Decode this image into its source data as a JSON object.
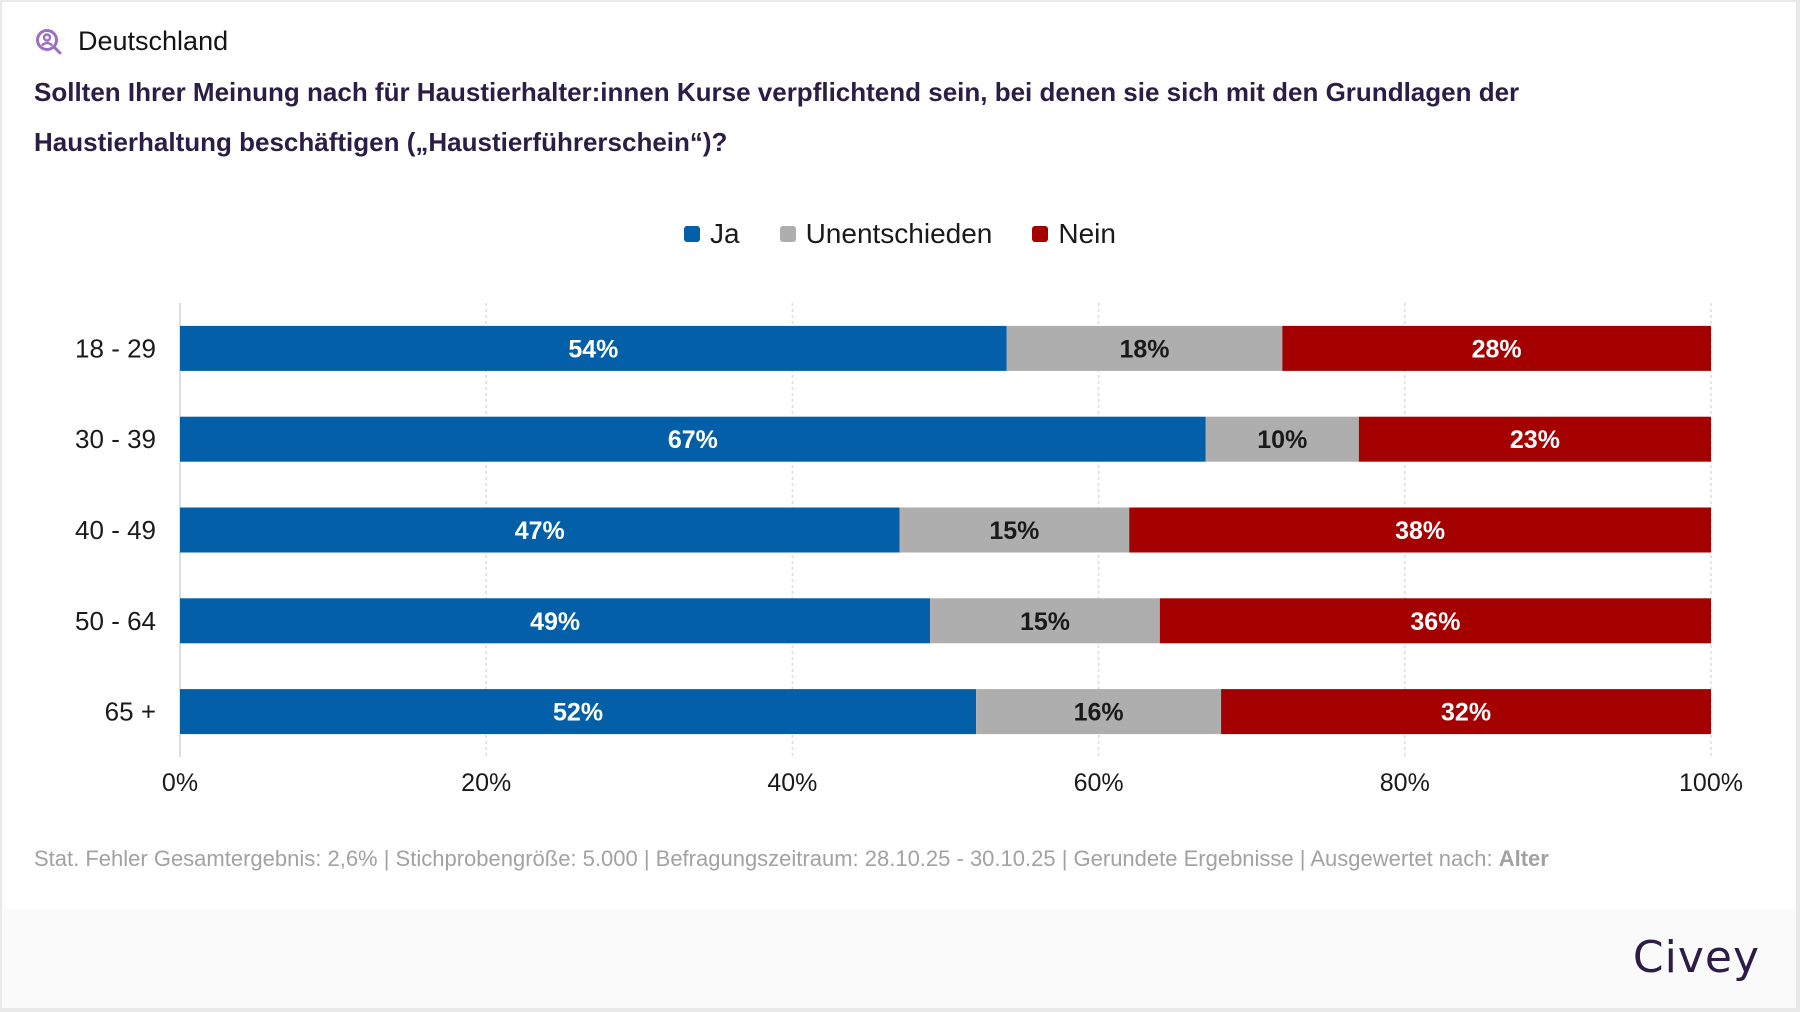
{
  "header": {
    "region_icon": "person-search-icon",
    "region": "Deutschland",
    "question": "Sollten Ihrer Meinung nach für Haustierhalter:innen Kurse verpflichtend sein, bei denen sie sich mit den Grundlagen der Haustierhaltung beschäftigen („Haustierführerschein“)?"
  },
  "colors": {
    "ja": "#0360a8",
    "unentschieden": "#aeaeae",
    "nein": "#a50000",
    "question": "#2b1d45",
    "icon": "#9b70c2"
  },
  "chart_data": {
    "type": "bar",
    "orientation": "horizontal",
    "stacked": true,
    "title": "Sollten Ihrer Meinung nach für Haustierhalter:innen Kurse verpflichtend sein, bei denen sie sich mit den Grundlagen der Haustierhaltung beschäftigen („Haustierführerschein“)?",
    "categories": [
      "18 - 29",
      "30 - 39",
      "40 - 49",
      "50 - 64",
      "65 +"
    ],
    "series": [
      {
        "name": "Ja",
        "color": "#0360a8",
        "label_color": "#ffffff",
        "values": [
          54,
          67,
          47,
          49,
          52
        ]
      },
      {
        "name": "Unentschieden",
        "color": "#aeaeae",
        "label_color": "#1a1a1a",
        "values": [
          18,
          10,
          15,
          15,
          16
        ]
      },
      {
        "name": "Nein",
        "color": "#a50000",
        "label_color": "#ffffff",
        "values": [
          28,
          23,
          38,
          36,
          32
        ]
      }
    ],
    "xlim": [
      0,
      100
    ],
    "xticks": [
      0,
      20,
      40,
      60,
      80,
      100
    ],
    "xtick_labels": [
      "0%",
      "20%",
      "40%",
      "60%",
      "80%",
      "100%"
    ],
    "value_suffix": "%",
    "xlabel": "",
    "ylabel": "",
    "grid": "vertical dashed",
    "legend_position": "top-center"
  },
  "legend": [
    {
      "label": "Ja"
    },
    {
      "label": "Unentschieden"
    },
    {
      "label": "Nein"
    }
  ],
  "footnote": {
    "text": "Stat. Fehler Gesamtergebnis: 2,6% | Stichprobengröße: 5.000 | Befragungszeitraum: 28.10.25 - 30.10.25 | Gerundete Ergebnisse | Ausgewertet nach: ",
    "emphasis": "Alter"
  },
  "footer": {
    "logo": "Civey"
  }
}
